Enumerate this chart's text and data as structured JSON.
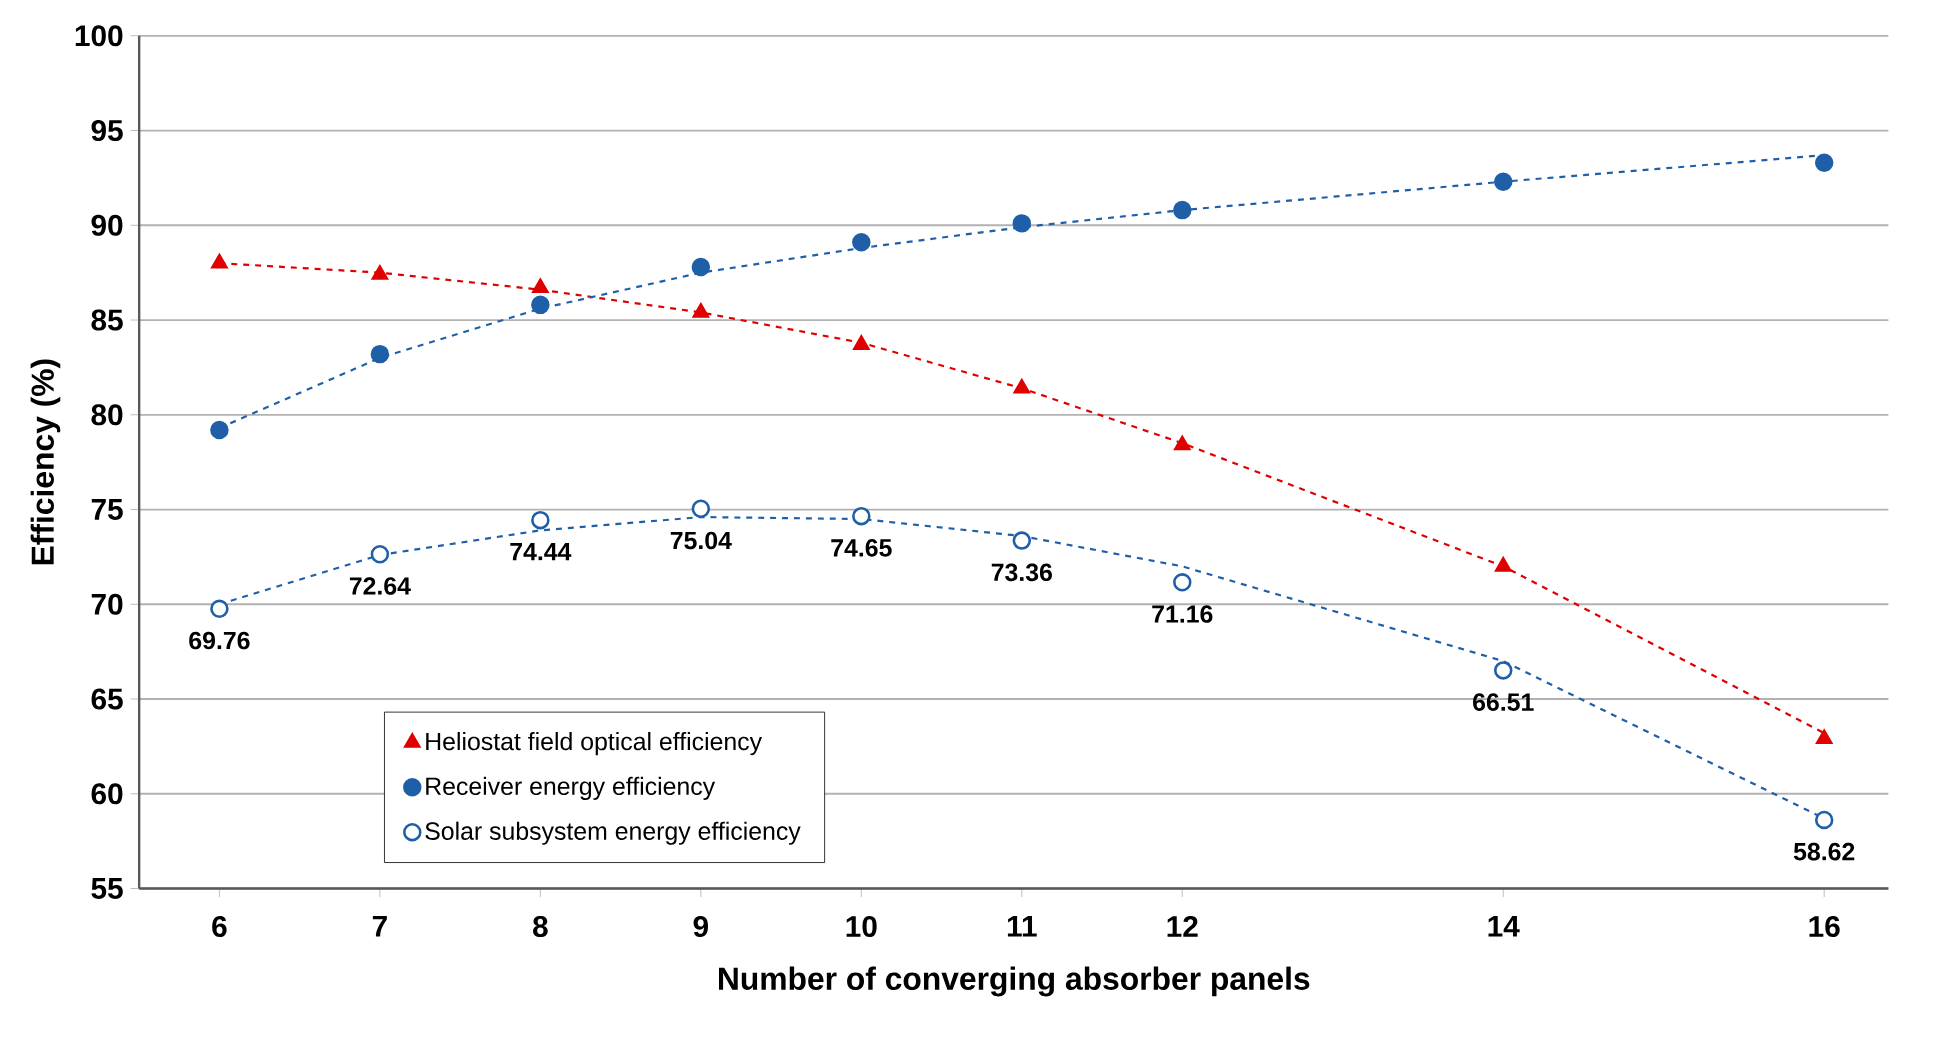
{
  "chart_data": {
    "type": "scatter",
    "xlabel": "Number of converging absorber panels",
    "ylabel": "Efficiency (%)",
    "x": [
      6,
      7,
      8,
      9,
      10,
      11,
      12,
      14,
      16
    ],
    "series": [
      {
        "name": "Heliostat field optical efficiency",
        "color": "#e00000",
        "marker": "triangle",
        "values": [
          88.0,
          87.4,
          86.7,
          85.4,
          83.7,
          81.4,
          78.4,
          72.0,
          62.9
        ]
      },
      {
        "name": "Receiver energy efficiency",
        "color": "#1f5fa8",
        "marker": "circle",
        "values": [
          79.2,
          83.2,
          85.8,
          87.8,
          89.1,
          90.1,
          90.8,
          92.3,
          93.3
        ]
      },
      {
        "name": "Solar subsystem energy efficiency",
        "color": "#1f5fa8",
        "marker": "circle",
        "values": [
          69.76,
          72.64,
          74.44,
          75.04,
          74.65,
          73.36,
          71.16,
          66.51,
          58.62
        ],
        "value_labels": [
          "69.76",
          "72.64",
          "74.44",
          "75.04",
          "74.65",
          "73.36",
          "71.16",
          "66.51",
          "58.62"
        ]
      },
      {
        "type": "line",
        "color": "#e00000",
        "line_style": "dashed",
        "marker": "none",
        "x": [
          6,
          7,
          8,
          9,
          10,
          11,
          12,
          14,
          16
        ],
        "values": [
          88.0,
          87.5,
          86.6,
          85.4,
          83.8,
          81.4,
          78.5,
          72.0,
          63.2
        ]
      },
      {
        "type": "line",
        "color": "#1f5fa8",
        "line_style": "dashed",
        "marker": "none",
        "x": [
          6,
          7,
          8,
          9,
          10,
          11,
          12,
          14,
          16
        ],
        "values": [
          79.3,
          83.0,
          85.6,
          87.5,
          88.8,
          89.9,
          90.8,
          92.3,
          93.7
        ]
      },
      {
        "type": "line",
        "color": "#1f5fa8",
        "line_style": "dashed",
        "marker": "none",
        "x": [
          6,
          7,
          8,
          9,
          10,
          11,
          12,
          14,
          16
        ],
        "values": [
          70.0,
          72.6,
          73.9,
          74.6,
          74.5,
          73.6,
          72.0,
          67.0,
          58.7
        ]
      }
    ],
    "xlim": [
      5.5,
      16.4
    ],
    "ylim": [
      55,
      100
    ],
    "xticks": [
      6,
      7,
      8,
      9,
      10,
      11,
      12,
      14,
      16
    ],
    "yticks": [
      55,
      60,
      65,
      70,
      75,
      80,
      85,
      90,
      95,
      100
    ],
    "grid": "y",
    "legend": "bottom left"
  }
}
